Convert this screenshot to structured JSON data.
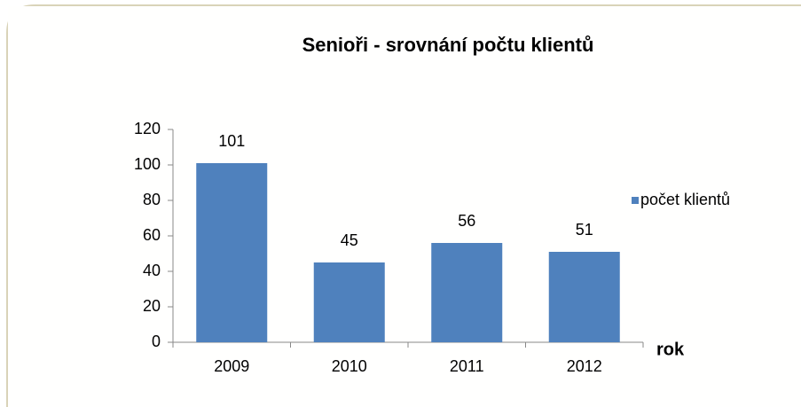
{
  "chart_data": {
    "type": "bar",
    "title": "Senioři - srovnání počtu klientů",
    "categories": [
      "2009",
      "2010",
      "2011",
      "2012"
    ],
    "series": [
      {
        "name": "počet klientů",
        "color": "#4f81bd",
        "values": [
          101,
          45,
          56,
          51
        ]
      }
    ],
    "xlabel": "rok",
    "ylim": [
      0,
      120
    ],
    "yticks": [
      0,
      20,
      40,
      60,
      80,
      100,
      120
    ],
    "grid": false,
    "legend": "right"
  }
}
